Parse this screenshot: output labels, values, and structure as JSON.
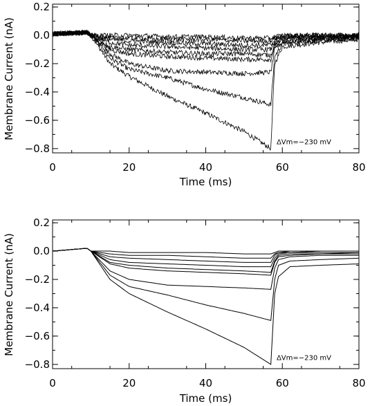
{
  "chart_data": [
    {
      "type": "line",
      "panel": "top",
      "style": "noisy",
      "xlabel": "Time (ms)",
      "ylabel": "Membrane Current (nA)",
      "xlim": [
        0,
        80
      ],
      "ylim": [
        -0.83,
        0.22
      ],
      "xticks": [
        0,
        20,
        40,
        60,
        80
      ],
      "yticks": [
        0.2,
        0.0,
        -0.2,
        -0.4,
        -0.6,
        -0.8
      ],
      "xtick_labels": [
        "0",
        "20",
        "40",
        "60",
        "80"
      ],
      "ytick_labels": [
        "0.2",
        "0.0",
        "−0.2",
        "−0.4",
        "−0.6",
        "−0.8"
      ],
      "annotation": {
        "text": "ΔVm=−230 mV",
        "x": 58.5,
        "y": -0.77
      },
      "series": [
        {
          "x": [
            0,
            9,
            10,
            15,
            20,
            30,
            40,
            50,
            57,
            58,
            60,
            70,
            80
          ],
          "y": [
            0.01,
            0.02,
            0.0,
            -0.2,
            -0.29,
            -0.43,
            -0.55,
            -0.68,
            -0.8,
            -0.2,
            -0.08,
            -0.05,
            -0.03
          ]
        },
        {
          "x": [
            0,
            9,
            10,
            15,
            20,
            30,
            40,
            50,
            57,
            58,
            60,
            70,
            80
          ],
          "y": [
            0.01,
            0.02,
            0.0,
            -0.16,
            -0.24,
            -0.3,
            -0.38,
            -0.44,
            -0.49,
            -0.15,
            -0.06,
            -0.04,
            -0.02
          ]
        },
        {
          "x": [
            0,
            9,
            10,
            15,
            20,
            30,
            40,
            50,
            57,
            58,
            60,
            70,
            80
          ],
          "y": [
            0.01,
            0.02,
            0.0,
            -0.13,
            -0.2,
            -0.25,
            -0.26,
            -0.27,
            -0.26,
            -0.1,
            -0.05,
            -0.03,
            -0.02
          ]
        },
        {
          "x": [
            0,
            9,
            10,
            15,
            20,
            30,
            40,
            50,
            57,
            58,
            60,
            70,
            80
          ],
          "y": [
            0.01,
            0.02,
            0.0,
            -0.1,
            -0.13,
            -0.15,
            -0.16,
            -0.17,
            -0.17,
            -0.08,
            -0.04,
            -0.02,
            -0.01
          ]
        },
        {
          "x": [
            0,
            9,
            10,
            15,
            20,
            30,
            40,
            50,
            57,
            58,
            60,
            70,
            80
          ],
          "y": [
            0.01,
            0.02,
            0.0,
            -0.08,
            -0.1,
            -0.12,
            -0.13,
            -0.13,
            -0.14,
            -0.06,
            -0.03,
            -0.02,
            -0.01
          ]
        },
        {
          "x": [
            0,
            9,
            10,
            15,
            20,
            30,
            40,
            50,
            57,
            58,
            60,
            70,
            80
          ],
          "y": [
            0.01,
            0.02,
            0.0,
            -0.05,
            -0.07,
            -0.08,
            -0.09,
            -0.1,
            -0.1,
            -0.04,
            -0.02,
            -0.01,
            0.0
          ]
        },
        {
          "x": [
            0,
            9,
            10,
            15,
            20,
            30,
            40,
            50,
            57,
            58,
            60,
            70,
            80
          ],
          "y": [
            0.01,
            0.02,
            0.0,
            -0.03,
            -0.04,
            -0.05,
            -0.06,
            -0.07,
            -0.07,
            -0.03,
            -0.01,
            0.0,
            0.0
          ]
        },
        {
          "x": [
            0,
            9,
            10,
            15,
            20,
            30,
            40,
            50,
            57,
            58,
            60,
            70,
            80
          ],
          "y": [
            0.01,
            0.02,
            0.0,
            -0.02,
            -0.02,
            -0.03,
            -0.03,
            -0.04,
            -0.04,
            -0.02,
            -0.01,
            0.0,
            0.0
          ]
        },
        {
          "x": [
            0,
            9,
            10,
            15,
            20,
            30,
            40,
            50,
            57,
            58,
            60,
            70,
            80
          ],
          "y": [
            0.01,
            0.02,
            0.0,
            0.0,
            0.0,
            -0.01,
            -0.01,
            -0.02,
            -0.02,
            -0.01,
            0.0,
            0.0,
            0.0
          ]
        }
      ]
    },
    {
      "type": "line",
      "panel": "bottom",
      "style": "smooth",
      "xlabel": "Time (ms)",
      "ylabel": "Membrane Current (nA)",
      "xlim": [
        0,
        80
      ],
      "ylim": [
        -0.83,
        0.22
      ],
      "xticks": [
        0,
        20,
        40,
        60,
        80
      ],
      "yticks": [
        0.2,
        0.0,
        -0.2,
        -0.4,
        -0.6,
        -0.8
      ],
      "xtick_labels": [
        "0",
        "20",
        "40",
        "60",
        "80"
      ],
      "ytick_labels": [
        "0.2",
        "0.0",
        "−0.2",
        "−0.4",
        "−0.6",
        "−0.8"
      ],
      "annotation": {
        "text": "ΔVm=−230 mV",
        "x": 58.5,
        "y": -0.77
      },
      "series": [
        {
          "x": [
            0,
            9,
            10,
            15,
            20,
            30,
            40,
            50,
            57,
            58,
            59,
            62,
            70,
            80
          ],
          "y": [
            0.0,
            0.02,
            0.0,
            -0.2,
            -0.3,
            -0.43,
            -0.55,
            -0.68,
            -0.8,
            -0.3,
            -0.18,
            -0.11,
            -0.1,
            -0.09
          ]
        },
        {
          "x": [
            0,
            9,
            10,
            15,
            20,
            30,
            40,
            50,
            57,
            58,
            59,
            62,
            70,
            80
          ],
          "y": [
            0.0,
            0.02,
            0.0,
            -0.17,
            -0.25,
            -0.31,
            -0.38,
            -0.44,
            -0.49,
            -0.2,
            -0.1,
            -0.07,
            -0.06,
            -0.05
          ]
        },
        {
          "x": [
            0,
            9,
            10,
            15,
            20,
            30,
            40,
            50,
            57,
            58,
            59,
            62,
            70,
            80
          ],
          "y": [
            0.0,
            0.02,
            0.0,
            -0.14,
            -0.2,
            -0.24,
            -0.25,
            -0.26,
            -0.27,
            -0.12,
            -0.06,
            -0.04,
            -0.03,
            -0.03
          ]
        },
        {
          "x": [
            0,
            9,
            10,
            15,
            20,
            30,
            40,
            50,
            57,
            58,
            59,
            62,
            70,
            80
          ],
          "y": [
            0.0,
            0.02,
            0.0,
            -0.09,
            -0.12,
            -0.14,
            -0.15,
            -0.16,
            -0.17,
            -0.08,
            -0.04,
            -0.03,
            -0.02,
            -0.02
          ]
        },
        {
          "x": [
            0,
            9,
            10,
            15,
            20,
            30,
            40,
            50,
            57,
            58,
            59,
            62,
            70,
            80
          ],
          "y": [
            0.0,
            0.02,
            0.0,
            -0.08,
            -0.1,
            -0.12,
            -0.13,
            -0.14,
            -0.15,
            -0.07,
            -0.03,
            -0.02,
            -0.02,
            -0.01
          ]
        },
        {
          "x": [
            0,
            9,
            10,
            15,
            20,
            30,
            40,
            50,
            57,
            58,
            59,
            62,
            70,
            80
          ],
          "y": [
            0.0,
            0.02,
            0.0,
            -0.06,
            -0.08,
            -0.09,
            -0.1,
            -0.11,
            -0.11,
            -0.05,
            -0.02,
            -0.01,
            -0.01,
            -0.01
          ]
        },
        {
          "x": [
            0,
            9,
            10,
            15,
            20,
            30,
            40,
            50,
            57,
            58,
            59,
            62,
            70,
            80
          ],
          "y": [
            0.0,
            0.02,
            0.0,
            -0.04,
            -0.05,
            -0.06,
            -0.07,
            -0.08,
            -0.08,
            -0.03,
            -0.01,
            -0.01,
            0.0,
            0.0
          ]
        },
        {
          "x": [
            0,
            9,
            10,
            15,
            20,
            30,
            40,
            50,
            57,
            58,
            59,
            62,
            70,
            80
          ],
          "y": [
            0.0,
            0.02,
            0.0,
            -0.02,
            -0.03,
            -0.03,
            -0.04,
            -0.05,
            -0.05,
            -0.02,
            -0.01,
            0.0,
            0.0,
            0.0
          ]
        },
        {
          "x": [
            0,
            9,
            10,
            15,
            20,
            30,
            40,
            50,
            57,
            58,
            59,
            62,
            70,
            80
          ],
          "y": [
            0.0,
            0.02,
            0.0,
            0.0,
            -0.01,
            -0.01,
            -0.01,
            -0.02,
            -0.02,
            -0.01,
            0.0,
            0.0,
            0.0,
            0.0
          ]
        }
      ]
    }
  ]
}
